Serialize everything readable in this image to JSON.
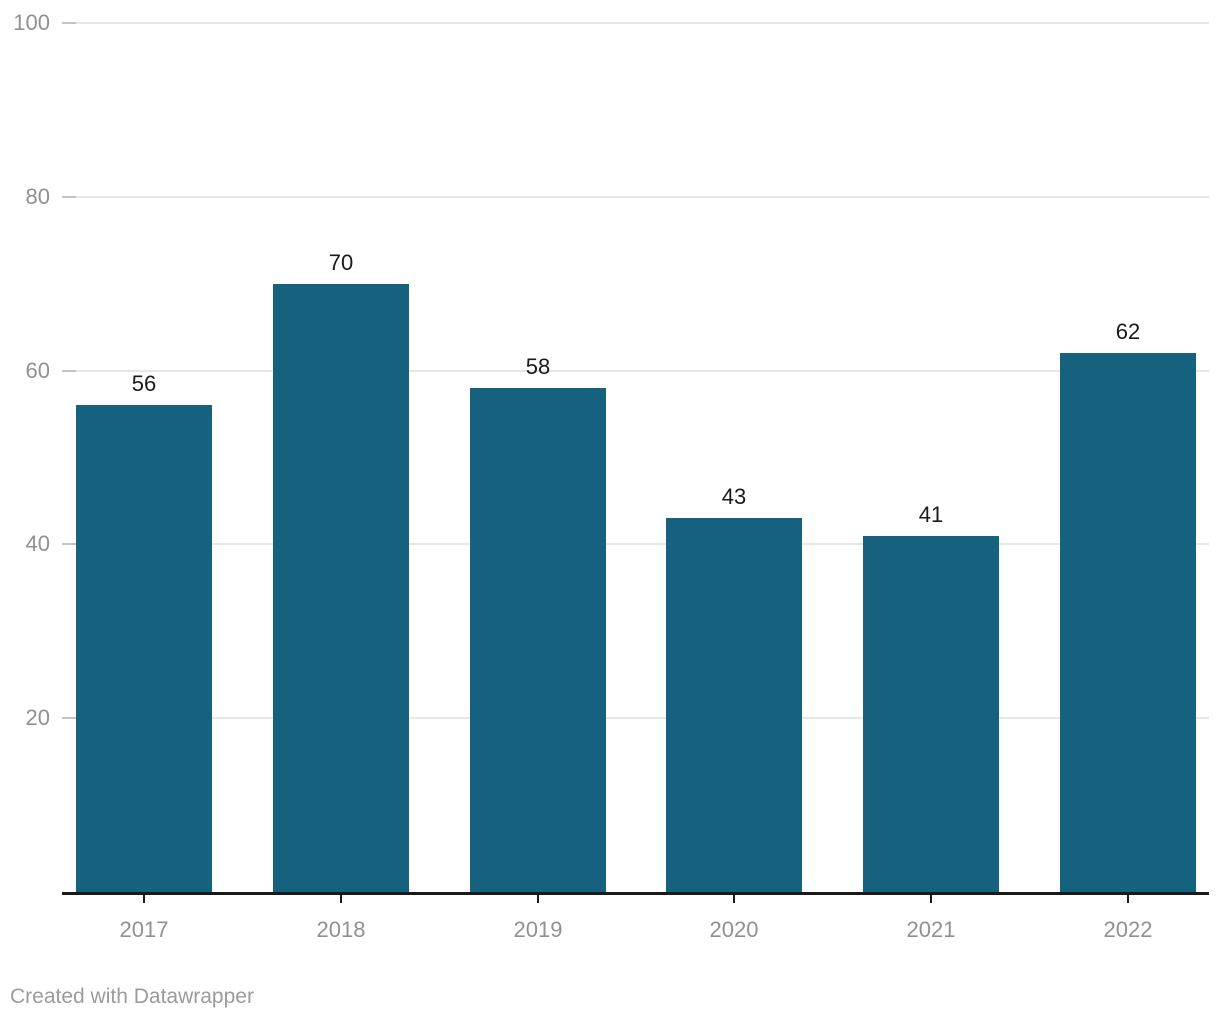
{
  "chart_data": {
    "type": "bar",
    "categories": [
      "2017",
      "2018",
      "2019",
      "2020",
      "2021",
      "2022"
    ],
    "values": [
      56,
      70,
      58,
      43,
      41,
      62
    ],
    "title": "",
    "xlabel": "",
    "ylabel": "",
    "ylim": [
      0,
      100
    ],
    "yticks": [
      20,
      40,
      60,
      80,
      100
    ],
    "grid": true,
    "legend": false,
    "bar_color": "#15617e",
    "value_label_color": "#1a1a1a",
    "axis_label_color": "#919191",
    "gridline_color": "#e6e6e6",
    "grid_tick_color": "#c4c4c4",
    "baseline_color": "#1a1a1a"
  },
  "footer": {
    "credit": "Created with Datawrapper"
  }
}
